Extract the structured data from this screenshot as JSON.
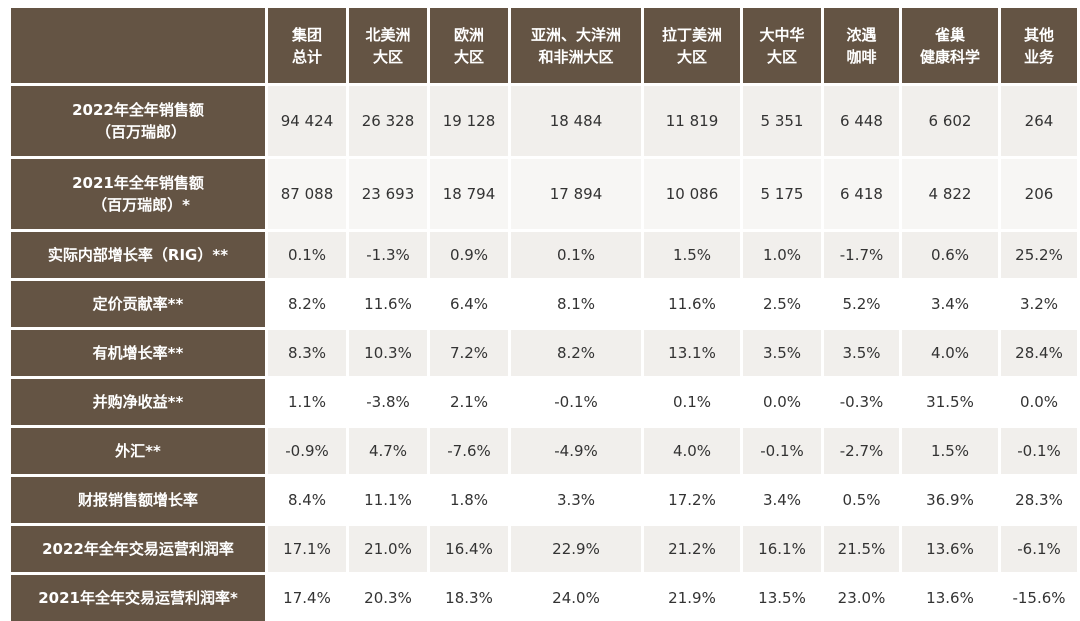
{
  "table": {
    "columns": [
      {
        "line1": "集团",
        "line2": "总计"
      },
      {
        "line1": "北美洲",
        "line2": "大区"
      },
      {
        "line1": "欧洲",
        "line2": "大区"
      },
      {
        "line1": "亚洲、大洋洲",
        "line2": "和非洲大区"
      },
      {
        "line1": "拉丁美洲",
        "line2": "大区"
      },
      {
        "line1": "大中华",
        "line2": "大区"
      },
      {
        "line1": "浓遇",
        "line2": "咖啡"
      },
      {
        "line1": "雀巢",
        "line2": "健康科学"
      },
      {
        "line1": "其他",
        "line2": "业务"
      }
    ],
    "rows": [
      {
        "label1": "2022年全年销售额",
        "label2": "（百万瑞郎）",
        "values": [
          "94 424",
          "26 328",
          "19 128",
          "18 484",
          "11 819",
          "5 351",
          "6 448",
          "6 602",
          "264"
        ]
      },
      {
        "label1": "2021年全年销售额",
        "label2": "（百万瑞郎）*",
        "values": [
          "87 088",
          "23 693",
          "18 794",
          "17 894",
          "10 086",
          "5 175",
          "6 418",
          "4 822",
          "206"
        ]
      },
      {
        "label1": "实际内部增长率（RIG）**",
        "label2": "",
        "values": [
          "0.1%",
          "-1.3%",
          "0.9%",
          "0.1%",
          "1.5%",
          "1.0%",
          "-1.7%",
          "0.6%",
          "25.2%"
        ]
      },
      {
        "label1": "定价贡献率**",
        "label2": "",
        "values": [
          "8.2%",
          "11.6%",
          "6.4%",
          "8.1%",
          "11.6%",
          "2.5%",
          "5.2%",
          "3.4%",
          "3.2%"
        ]
      },
      {
        "label1": "有机增长率**",
        "label2": "",
        "values": [
          "8.3%",
          "10.3%",
          "7.2%",
          "8.2%",
          "13.1%",
          "3.5%",
          "3.5%",
          "4.0%",
          "28.4%"
        ]
      },
      {
        "label1": "并购净收益**",
        "label2": "",
        "values": [
          "1.1%",
          "-3.8%",
          "2.1%",
          "-0.1%",
          "0.1%",
          "0.0%",
          "-0.3%",
          "31.5%",
          "0.0%"
        ]
      },
      {
        "label1": "外汇**",
        "label2": "",
        "values": [
          "-0.9%",
          "4.7%",
          "-7.6%",
          "-4.9%",
          "4.0%",
          "-0.1%",
          "-2.7%",
          "1.5%",
          "-0.1%"
        ]
      },
      {
        "label1": "财报销售额增长率",
        "label2": "",
        "values": [
          "8.4%",
          "11.1%",
          "1.8%",
          "3.3%",
          "17.2%",
          "3.4%",
          "0.5%",
          "36.9%",
          "28.3%"
        ]
      },
      {
        "label1": "2022年全年交易运营利润率",
        "label2": "",
        "values": [
          "17.1%",
          "21.0%",
          "16.4%",
          "22.9%",
          "21.2%",
          "16.1%",
          "21.5%",
          "13.6%",
          "-6.1%"
        ]
      },
      {
        "label1": "2021年全年交易运营利润率*",
        "label2": "",
        "values": [
          "17.4%",
          "20.3%",
          "18.3%",
          "24.0%",
          "21.9%",
          "13.5%",
          "23.0%",
          "13.6%",
          "-15.6%"
        ]
      }
    ]
  }
}
